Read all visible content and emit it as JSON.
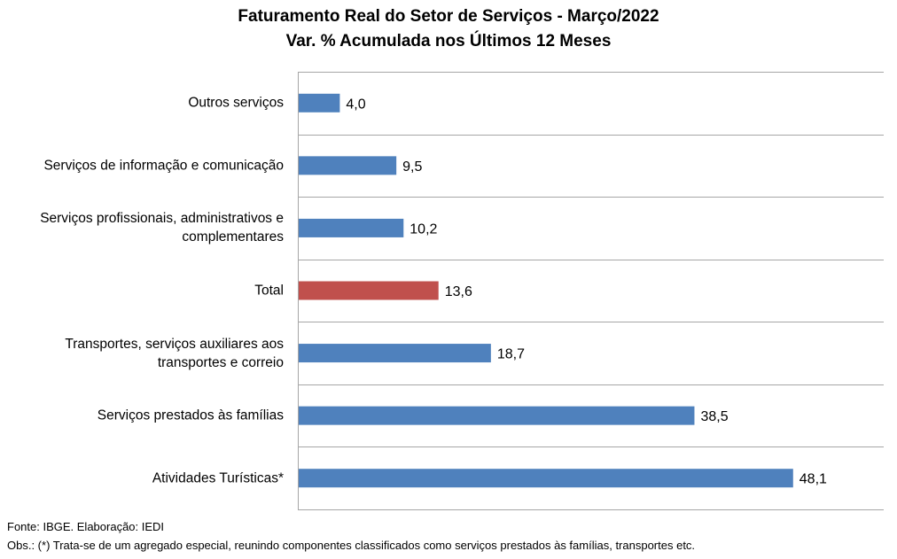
{
  "chart_data": {
    "type": "bar",
    "orientation": "horizontal",
    "title": "Faturamento Real do Setor de Serviços - Março/2022",
    "subtitle": "Var. % Acumulada nos Últimos 12 Meses",
    "categories": [
      "Outros serviços",
      "Serviços de informação e comunicação",
      "Serviços profissionais, administrativos e complementares",
      "Total",
      "Transportes, serviços auxiliares aos transportes e correio",
      "Serviços prestados às famílias",
      "Atividades Turísticas*"
    ],
    "values": [
      4.0,
      9.5,
      10.2,
      13.6,
      18.7,
      38.5,
      48.1
    ],
    "value_labels": [
      "4,0",
      "9,5",
      "10,2",
      "13,6",
      "18,7",
      "38,5",
      "48,1"
    ],
    "xlim": [
      0,
      57
    ],
    "grid": true,
    "legend": "none",
    "colors": {
      "default": "#4F81BD",
      "highlight": "#C0504D",
      "grid": "#A6A6A6"
    },
    "highlight_category": "Total"
  },
  "footnotes": {
    "source": "Fonte: IBGE. Elaboração: IEDI",
    "obs": "Obs.: (*) Trata-se de um agregado especial, reunindo componentes  classificados como serviços prestados às famílias, transportes etc."
  }
}
